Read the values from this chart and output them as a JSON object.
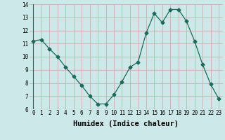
{
  "x": [
    0,
    1,
    2,
    3,
    4,
    5,
    6,
    7,
    8,
    9,
    10,
    11,
    12,
    13,
    14,
    15,
    16,
    17,
    18,
    19,
    20,
    21,
    22,
    23
  ],
  "y": [
    11.2,
    11.3,
    10.6,
    10.0,
    9.2,
    8.5,
    7.8,
    7.0,
    6.4,
    6.4,
    7.1,
    8.1,
    9.2,
    9.6,
    11.8,
    13.3,
    12.6,
    13.6,
    13.6,
    12.7,
    11.2,
    9.4,
    7.9,
    6.8
  ],
  "line_color": "#1a6b5a",
  "marker": "D",
  "marker_size": 2.5,
  "bg_color": "#cce8e8",
  "grid_major_color": "#c8b8b8",
  "grid_minor_color": "#d8e8e8",
  "xlabel": "Humidex (Indice chaleur)",
  "ylim": [
    6,
    14
  ],
  "xlim": [
    -0.5,
    23.5
  ],
  "yticks": [
    6,
    7,
    8,
    9,
    10,
    11,
    12,
    13,
    14
  ],
  "xticks": [
    0,
    1,
    2,
    3,
    4,
    5,
    6,
    7,
    8,
    9,
    10,
    11,
    12,
    13,
    14,
    15,
    16,
    17,
    18,
    19,
    20,
    21,
    22,
    23
  ],
  "tick_fontsize": 5.5,
  "xlabel_fontsize": 7.5,
  "xlabel_fontweight": "bold"
}
